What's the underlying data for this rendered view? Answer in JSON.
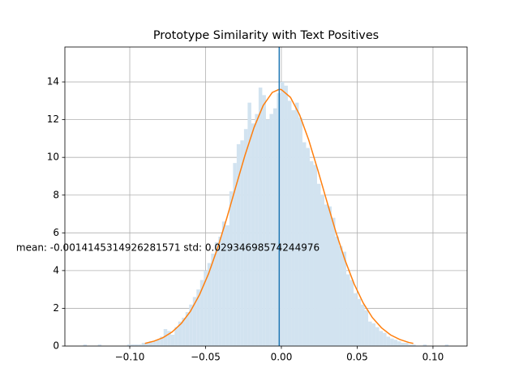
{
  "chart_data": {
    "type": "histogram",
    "title": "Prototype Similarity with Text Positives",
    "annotation": "mean: -0.0014145314926281571 std: 0.02934698574244976",
    "bins": [
      -0.1307,
      -0.12829,
      -0.12588,
      -0.12347,
      -0.12106,
      -0.11865,
      -0.11624,
      -0.11383,
      -0.11142,
      -0.10901,
      -0.1066,
      -0.10419,
      -0.10178,
      -0.09937,
      -0.09696,
      -0.09455,
      -0.09214,
      -0.08973,
      -0.08732,
      -0.08491,
      -0.0825,
      -0.08009,
      -0.07768,
      -0.07527,
      -0.07286,
      -0.07045,
      -0.06804,
      -0.06563,
      -0.06322,
      -0.06081,
      -0.0584,
      -0.05599,
      -0.05358,
      -0.05117,
      -0.04876,
      -0.04635,
      -0.04394,
      -0.04153,
      -0.03912,
      -0.03671,
      -0.0343,
      -0.03189,
      -0.02948,
      -0.02707,
      -0.02466,
      -0.02225,
      -0.01984,
      -0.01743,
      -0.01502,
      -0.01261,
      -0.0102,
      -0.00779,
      -0.00538,
      -0.00297,
      -0.00056,
      0.00185,
      0.00426,
      0.00667,
      0.00908,
      0.01149,
      0.0139,
      0.01631,
      0.01872,
      0.02113,
      0.02354,
      0.02595,
      0.02836,
      0.03077,
      0.03318,
      0.03559,
      0.038,
      0.04041,
      0.04282,
      0.04523,
      0.04764,
      0.05005,
      0.05246,
      0.05487,
      0.05728,
      0.05969,
      0.0621,
      0.06451,
      0.06692,
      0.06933,
      0.07174,
      0.07415,
      0.07656,
      0.07897,
      0.08138,
      0.08379,
      0.0862,
      0.08861,
      0.09102,
      0.09343,
      0.09584,
      0.09825,
      0.10066,
      0.10307,
      0.10548,
      0.10789,
      0.1103
    ],
    "values": [
      0.08,
      0,
      0,
      0,
      0.08,
      0,
      0,
      0,
      0,
      0,
      0,
      0,
      0.08,
      0.08,
      0.08,
      0.08,
      0.17,
      0.17,
      0.25,
      0.25,
      0.33,
      0.5,
      0.9,
      0.8,
      0.6,
      1.0,
      1.3,
      1.5,
      1.8,
      2.2,
      2.6,
      3.0,
      3.5,
      4.0,
      4.4,
      4.9,
      5.5,
      5.8,
      6.6,
      6.4,
      8.2,
      9.7,
      10.7,
      10.9,
      11.5,
      12.9,
      11.8,
      12.3,
      13.7,
      13.3,
      12.0,
      12.3,
      12.6,
      13.4,
      14.0,
      13.8,
      13.0,
      12.5,
      12.9,
      12.1,
      10.8,
      10.5,
      9.8,
      9.6,
      8.6,
      8.0,
      7.5,
      7.4,
      6.8,
      5.8,
      5.3,
      5.0,
      3.8,
      3.5,
      2.8,
      2.5,
      2.2,
      1.9,
      1.3,
      1.2,
      1.0,
      0.8,
      0.7,
      0.5,
      0.4,
      0.33,
      0.25,
      0.17,
      0.17,
      0.08,
      0.08,
      0,
      0,
      0.08,
      0,
      0,
      0,
      0,
      0,
      0.08
    ],
    "color": "#d2e3f0",
    "curve": {
      "color": "#ff7f0e",
      "x": [
        -0.09,
        -0.084,
        -0.078,
        -0.072,
        -0.066,
        -0.06,
        -0.054,
        -0.048,
        -0.042,
        -0.036,
        -0.03,
        -0.024,
        -0.018,
        -0.012,
        -0.006,
        -0.0014,
        0.0,
        0.006,
        0.012,
        0.018,
        0.024,
        0.03,
        0.036,
        0.042,
        0.048,
        0.054,
        0.06,
        0.066,
        0.072,
        0.078,
        0.084,
        0.087
      ],
      "values": [
        0.14,
        0.26,
        0.45,
        0.75,
        1.2,
        1.84,
        2.72,
        3.84,
        5.21,
        6.78,
        8.46,
        10.11,
        11.59,
        12.75,
        13.44,
        13.61,
        13.59,
        13.18,
        12.26,
        10.93,
        9.34,
        7.67,
        6.03,
        4.55,
        3.29,
        2.28,
        1.51,
        0.97,
        0.59,
        0.35,
        0.19,
        0.14
      ]
    },
    "vline": {
      "x": -0.0014145314926281571,
      "color": "#1f77b4"
    },
    "xlim": [
      -0.1428,
      0.1225
    ],
    "ylim": [
      0,
      15.85
    ],
    "xticks": [
      {
        "value": -0.1,
        "label": "−0.10"
      },
      {
        "value": -0.05,
        "label": "−0.05"
      },
      {
        "value": 0,
        "label": "0.00"
      },
      0.05,
      {
        "value": 0.1,
        "label": "0.10"
      }
    ],
    "yticks": [
      0,
      2,
      4,
      6,
      8,
      10,
      12,
      14
    ],
    "grid": true
  }
}
